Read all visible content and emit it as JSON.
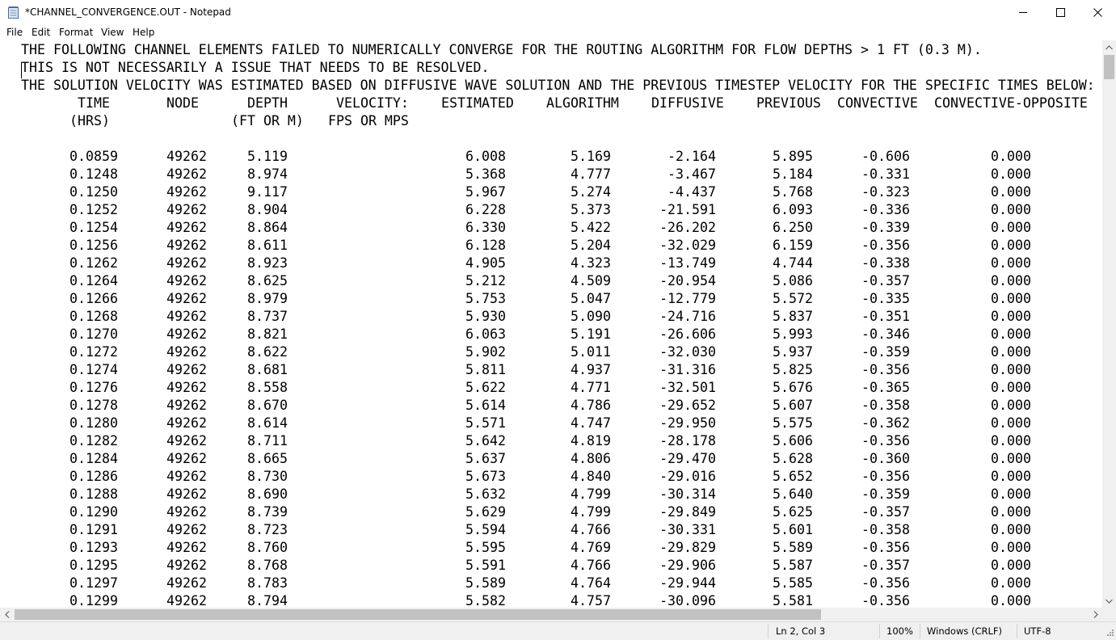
{
  "window": {
    "title": "*CHANNEL_CONVERGENCE.OUT - Notepad",
    "icons": [
      "notepad-icon",
      "minimize-icon",
      "maximize-icon",
      "close-icon"
    ]
  },
  "menu": [
    "File",
    "Edit",
    "Format",
    "View",
    "Help"
  ],
  "document": {
    "intro_lines": [
      "THE FOLLOWING CHANNEL ELEMENTS FAILED TO NUMERICALLY CONVERGE FOR THE ROUTING ALGORITHM FOR FLOW DEPTHS > 1 FT (0.3 M).",
      "THIS IS NOT NECESSARILY A ISSUE THAT NEEDS TO BE RESOLVED.",
      "THE SOLUTION VELOCITY WAS ESTIMATED BASED ON DIFFUSIVE WAVE SOLUTION AND THE PREVIOUS TIMESTEP VELOCITY FOR THE SPECIFIC TIMES BELOW:"
    ],
    "header_row1": [
      "TIME",
      "NODE",
      "DEPTH",
      "VELOCITY:",
      "ESTIMATED",
      "ALGORITHM",
      "DIFFUSIVE",
      "PREVIOUS",
      "CONVECTIVE",
      "CONVECTIVE-OPPOSITE"
    ],
    "header_row2": [
      "(HRS)",
      "(FT OR M)",
      "FPS OR MPS"
    ],
    "rows": [
      [
        "0.0859",
        "49262",
        "5.119",
        "6.008",
        "5.169",
        "-2.164",
        "5.895",
        "-0.606",
        "0.000"
      ],
      [
        "0.1248",
        "49262",
        "8.974",
        "5.368",
        "4.777",
        "-3.467",
        "5.184",
        "-0.331",
        "0.000"
      ],
      [
        "0.1250",
        "49262",
        "9.117",
        "5.967",
        "5.274",
        "-4.437",
        "5.768",
        "-0.323",
        "0.000"
      ],
      [
        "0.1252",
        "49262",
        "8.904",
        "6.228",
        "5.373",
        "-21.591",
        "6.093",
        "-0.336",
        "0.000"
      ],
      [
        "0.1254",
        "49262",
        "8.864",
        "6.330",
        "5.422",
        "-26.202",
        "6.250",
        "-0.339",
        "0.000"
      ],
      [
        "0.1256",
        "49262",
        "8.611",
        "6.128",
        "5.204",
        "-32.029",
        "6.159",
        "-0.356",
        "0.000"
      ],
      [
        "0.1262",
        "49262",
        "8.923",
        "4.905",
        "4.323",
        "-13.749",
        "4.744",
        "-0.338",
        "0.000"
      ],
      [
        "0.1264",
        "49262",
        "8.625",
        "5.212",
        "4.509",
        "-20.954",
        "5.086",
        "-0.357",
        "0.000"
      ],
      [
        "0.1266",
        "49262",
        "8.979",
        "5.753",
        "5.047",
        "-12.779",
        "5.572",
        "-0.335",
        "0.000"
      ],
      [
        "0.1268",
        "49262",
        "8.737",
        "5.930",
        "5.090",
        "-24.716",
        "5.837",
        "-0.351",
        "0.000"
      ],
      [
        "0.1270",
        "49262",
        "8.821",
        "6.063",
        "5.191",
        "-26.606",
        "5.993",
        "-0.346",
        "0.000"
      ],
      [
        "0.1272",
        "49262",
        "8.622",
        "5.902",
        "5.011",
        "-32.030",
        "5.937",
        "-0.359",
        "0.000"
      ],
      [
        "0.1274",
        "49262",
        "8.681",
        "5.811",
        "4.937",
        "-31.316",
        "5.825",
        "-0.356",
        "0.000"
      ],
      [
        "0.1276",
        "49262",
        "8.558",
        "5.622",
        "4.771",
        "-32.501",
        "5.676",
        "-0.365",
        "0.000"
      ],
      [
        "0.1278",
        "49262",
        "8.670",
        "5.614",
        "4.786",
        "-29.652",
        "5.607",
        "-0.358",
        "0.000"
      ],
      [
        "0.1280",
        "49262",
        "8.614",
        "5.571",
        "4.747",
        "-29.950",
        "5.575",
        "-0.362",
        "0.000"
      ],
      [
        "0.1282",
        "49262",
        "8.711",
        "5.642",
        "4.819",
        "-28.178",
        "5.606",
        "-0.356",
        "0.000"
      ],
      [
        "0.1284",
        "49262",
        "8.665",
        "5.637",
        "4.806",
        "-29.470",
        "5.628",
        "-0.360",
        "0.000"
      ],
      [
        "0.1286",
        "49262",
        "8.730",
        "5.673",
        "4.840",
        "-29.016",
        "5.652",
        "-0.356",
        "0.000"
      ],
      [
        "0.1288",
        "49262",
        "8.690",
        "5.632",
        "4.799",
        "-30.314",
        "5.640",
        "-0.359",
        "0.000"
      ],
      [
        "0.1290",
        "49262",
        "8.739",
        "5.629",
        "4.799",
        "-29.849",
        "5.625",
        "-0.357",
        "0.000"
      ],
      [
        "0.1291",
        "49262",
        "8.723",
        "5.594",
        "4.766",
        "-30.331",
        "5.601",
        "-0.358",
        "0.000"
      ],
      [
        "0.1293",
        "49262",
        "8.760",
        "5.595",
        "4.769",
        "-29.829",
        "5.589",
        "-0.356",
        "0.000"
      ],
      [
        "0.1295",
        "49262",
        "8.768",
        "5.591",
        "4.766",
        "-29.906",
        "5.587",
        "-0.357",
        "0.000"
      ],
      [
        "0.1297",
        "49262",
        "8.783",
        "5.589",
        "4.764",
        "-29.944",
        "5.585",
        "-0.356",
        "0.000"
      ],
      [
        "0.1299",
        "49262",
        "8.794",
        "5.582",
        "4.757",
        "-30.096",
        "5.581",
        "-0.356",
        "0.000"
      ]
    ]
  },
  "status": {
    "position": "Ln 2, Col 3",
    "zoom": "100%",
    "line_ending": "Windows (CRLF)",
    "encoding": "UTF-8"
  },
  "colors": {
    "scrollbar_track": "#f0f0f0",
    "scrollbar_thumb": "#c1c1c1",
    "statusbar_bg": "#f0f0f0"
  }
}
